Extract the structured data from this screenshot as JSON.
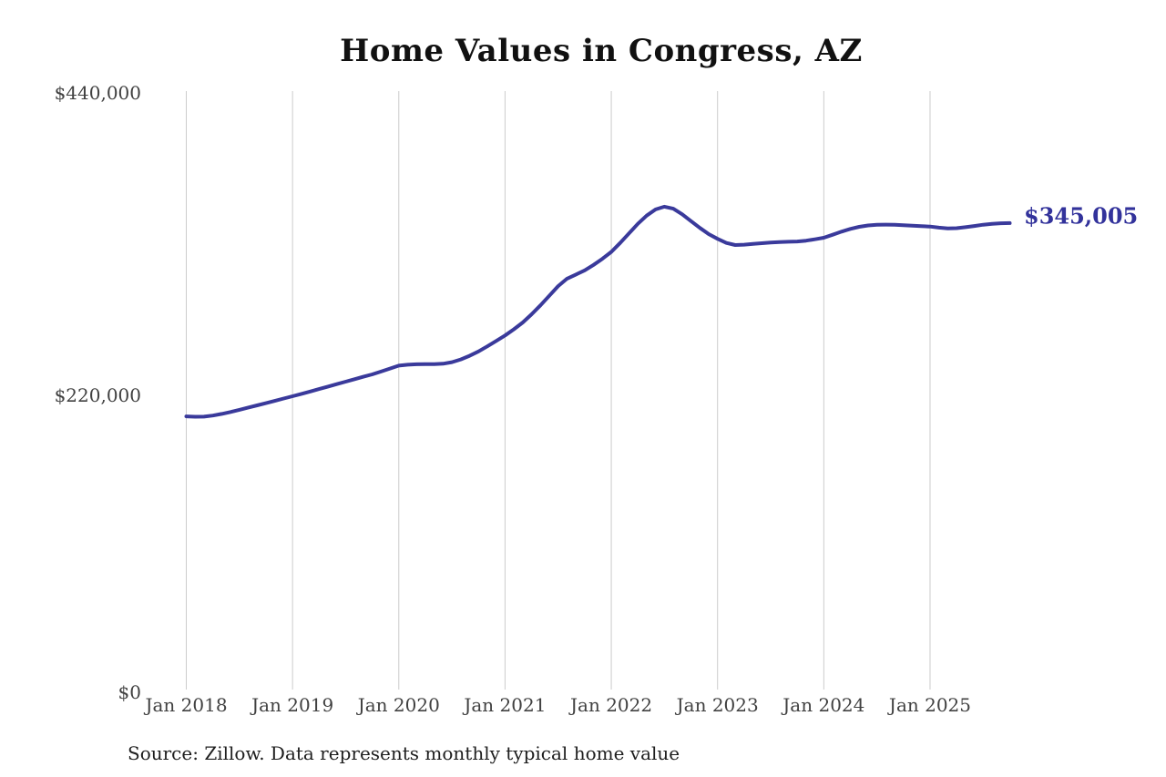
{
  "title": "Home Values in Congress, AZ",
  "source_note": "Source: Zillow. Data represents monthly typical home value",
  "end_label": "$345,005",
  "chart_data": {
    "type": "line",
    "title": "Home Values in Congress, AZ",
    "series_name": "Monthly typical home value",
    "xlabel": "",
    "ylabel": "",
    "ylim": [
      0,
      440000
    ],
    "grid": "vertical-yearly",
    "legend_position": "none",
    "line_color": "#3a3a9b",
    "grid_color": "#cccccc",
    "y_ticks": [
      "$440,000",
      "$220,000",
      "$0"
    ],
    "y_tick_values": [
      440000,
      220000,
      0
    ],
    "x_ticks": [
      "Jan 2018",
      "Jan 2019",
      "Jan 2020",
      "Jan 2021",
      "Jan 2022",
      "Jan 2023",
      "Jan 2024",
      "Jan 2025"
    ],
    "final_value": 345005,
    "x": [
      "2018-01",
      "2018-02",
      "2018-03",
      "2018-04",
      "2018-05",
      "2018-06",
      "2018-07",
      "2018-08",
      "2018-09",
      "2018-10",
      "2018-11",
      "2018-12",
      "2019-01",
      "2019-02",
      "2019-03",
      "2019-04",
      "2019-05",
      "2019-06",
      "2019-07",
      "2019-08",
      "2019-09",
      "2019-10",
      "2019-11",
      "2019-12",
      "2020-01",
      "2020-02",
      "2020-03",
      "2020-04",
      "2020-05",
      "2020-06",
      "2020-07",
      "2020-08",
      "2020-09",
      "2020-10",
      "2020-11",
      "2020-12",
      "2021-01",
      "2021-02",
      "2021-03",
      "2021-04",
      "2021-05",
      "2021-06",
      "2021-07",
      "2021-08",
      "2021-09",
      "2021-10",
      "2021-11",
      "2021-12",
      "2022-01",
      "2022-02",
      "2022-03",
      "2022-04",
      "2022-05",
      "2022-06",
      "2022-07",
      "2022-08",
      "2022-09",
      "2022-10",
      "2022-11",
      "2022-12",
      "2023-01",
      "2023-02",
      "2023-03",
      "2023-04",
      "2023-05",
      "2023-06",
      "2023-07",
      "2023-08",
      "2023-09",
      "2023-10",
      "2023-11",
      "2023-12",
      "2024-01",
      "2024-02",
      "2024-03",
      "2024-04",
      "2024-05",
      "2024-06",
      "2024-07",
      "2024-08",
      "2024-09",
      "2024-10",
      "2024-11",
      "2024-12",
      "2025-01",
      "2025-02",
      "2025-03",
      "2025-04",
      "2025-05",
      "2025-06",
      "2025-07",
      "2025-08",
      "2025-09",
      "2025-10"
    ],
    "values": [
      204000,
      203700,
      203800,
      204600,
      205800,
      207200,
      208800,
      210400,
      212000,
      213600,
      215300,
      217000,
      218700,
      220400,
      222100,
      223900,
      225700,
      227500,
      229300,
      231100,
      232900,
      234600,
      236700,
      238900,
      241000,
      241700,
      242000,
      242100,
      242100,
      242400,
      243500,
      245500,
      248200,
      251400,
      255100,
      259000,
      263000,
      267500,
      272500,
      278500,
      285000,
      292000,
      299000,
      304500,
      307500,
      310500,
      314500,
      319000,
      324000,
      330500,
      337500,
      344500,
      350500,
      355000,
      357000,
      355500,
      351500,
      346500,
      341500,
      337000,
      333500,
      330500,
      329000,
      329300,
      329800,
      330300,
      330800,
      331200,
      331400,
      331600,
      332200,
      333200,
      334300,
      336500,
      338800,
      340800,
      342300,
      343300,
      343800,
      343900,
      343800,
      343500,
      343100,
      342800,
      342500,
      341700,
      341100,
      341300,
      342000,
      342900,
      343800,
      344500,
      344900,
      345005
    ]
  }
}
